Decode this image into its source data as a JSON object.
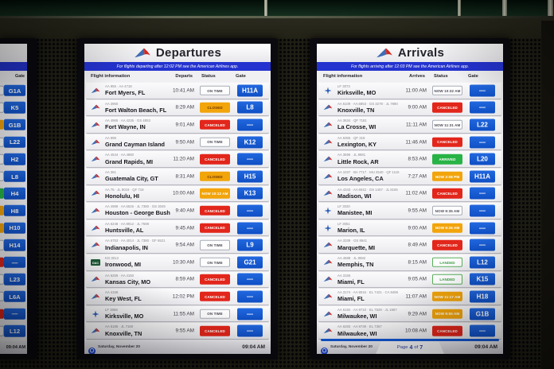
{
  "scene": {
    "time": "09:04 AM",
    "date": "Saturday, November 20"
  },
  "icons": {
    "kg_label": "DAC"
  },
  "colors": {
    "gate_blue": "#1257d2",
    "banner_blue": "#2433cf",
    "canceled_red": "#e2261b",
    "amber": "#f2a40b",
    "arrived_green": "#28b346"
  },
  "left_board": {
    "gate_column_label": "Gate",
    "footer_time": "09:04 AM",
    "rows": [
      {
        "gate": "G1A",
        "status_edge": "outline"
      },
      {
        "gate": "K5",
        "status_edge": "outline"
      },
      {
        "gate": "G1B",
        "status_edge": "amber"
      },
      {
        "gate": "L22",
        "status_edge": "outline"
      },
      {
        "gate": "H2",
        "status_edge": "outline"
      },
      {
        "gate": "L8",
        "status_edge": "outline"
      },
      {
        "gate": "H4",
        "status_edge": "green"
      },
      {
        "gate": "H8",
        "status_edge": "amber"
      },
      {
        "gate": "H10",
        "status_edge": "amber"
      },
      {
        "gate": "H14",
        "status_edge": "outline"
      },
      {
        "gate": "—",
        "status_edge": "red"
      },
      {
        "gate": "L23",
        "status_edge": "outline"
      },
      {
        "gate": "L6A",
        "status_edge": "outline"
      },
      {
        "gate": "—",
        "status_edge": "red"
      },
      {
        "gate": "L12",
        "status_edge": "outline"
      }
    ]
  },
  "departures": {
    "title": "Departures",
    "banner": "For flights departing after 12:02 PM see the American Airlines app.",
    "columns": [
      "Flight information",
      "Departs",
      "Status",
      "Gate"
    ],
    "footer": {
      "date": "Saturday, November 20",
      "time": "09:04 AM"
    },
    "rows": [
      {
        "airline": "aa",
        "codes": "AA 955 · AA 4718",
        "city": "Fort Myers, FL",
        "time": "10:41 AM",
        "status": "ON TIME",
        "status_style": "ontime",
        "gate": "H11A"
      },
      {
        "airline": "aa",
        "codes": "AA 3960",
        "city": "Fort Walton Beach, FL",
        "time": "8:29 AM",
        "status": "CLOSED",
        "status_style": "closed",
        "gate": "L8"
      },
      {
        "airline": "aa",
        "codes": "AA 4965 · AA 4235 · GS 4853",
        "city": "Fort Wayne, IN",
        "time": "9:01 AM",
        "status": "CANCELED",
        "status_style": "canceled",
        "gate": "—"
      },
      {
        "airline": "aa",
        "codes": "AA 998",
        "city": "Grand Cayman Island",
        "time": "9:50 AM",
        "status": "ON TIME",
        "status_style": "ontime",
        "gate": "K12"
      },
      {
        "airline": "aa",
        "codes": "AA 4544 · AA 4880",
        "city": "Grand Rapids, MI",
        "time": "11:20 AM",
        "status": "CANCELED",
        "status_style": "canceled",
        "gate": "—"
      },
      {
        "airline": "aa",
        "codes": "AA 361",
        "city": "Guatemala City, GT",
        "time": "8:31 AM",
        "status": "CLOSED",
        "status_style": "closed",
        "gate": "H15"
      },
      {
        "airline": "aa",
        "codes": "AA 75 · JL 8019 · QF 718",
        "city": "Honolulu, HI",
        "time": "10:00 AM",
        "status": "NOW 10:12 AM",
        "status_style": "now-amber",
        "gate": "K13"
      },
      {
        "airline": "aa",
        "codes": "AA 4989 · AA 6525 · JL 7380 · GS 3049",
        "city": "Houston - George Bush",
        "time": "9:40 AM",
        "status": "CANCELED",
        "status_style": "canceled",
        "gate": "—"
      },
      {
        "airline": "aa",
        "codes": "AA 6248 · AA 9912 · JL 7698",
        "city": "Huntsville, AL",
        "time": "9:45 AM",
        "status": "CANCELED",
        "status_style": "canceled",
        "gate": "—"
      },
      {
        "airline": "aa",
        "codes": "AA 6753 · AA 4014 · JL 7380 · GF 6521",
        "city": "Indianapolis, IN",
        "time": "9:54 AM",
        "status": "ON TIME",
        "status_style": "ontime",
        "gate": "L9"
      },
      {
        "airline": "kg",
        "codes": "KG 3012",
        "city": "Ironwood, MI",
        "time": "10:30 AM",
        "status": "ON TIME",
        "status_style": "ontime",
        "gate": "G21"
      },
      {
        "airline": "aa",
        "codes": "AA 6259 · AA 4150",
        "city": "Kansas City, MO",
        "time": "8:59 AM",
        "status": "CANCELED",
        "status_style": "canceled",
        "gate": "—"
      },
      {
        "airline": "aa",
        "codes": "AA 4168",
        "city": "Key West, FL",
        "time": "12:02 PM",
        "status": "CANCELED",
        "status_style": "canceled",
        "gate": "—"
      },
      {
        "airline": "lf",
        "codes": "LF 3068",
        "city": "Kirksville, MO",
        "time": "11:55 AM",
        "status": "ON TIME",
        "status_style": "ontime",
        "gate": "—"
      },
      {
        "airline": "aa",
        "codes": "AA 5185 · JL 7160",
        "city": "Knoxville, TN",
        "time": "9:55 AM",
        "status": "CANCELED",
        "status_style": "canceled",
        "gate": "—"
      }
    ]
  },
  "arrivals": {
    "title": "Arrivals",
    "banner": "For flights arriving after 12:03 PM see the American Airlines app.",
    "columns": [
      "Flight information",
      "Arrives",
      "Status",
      "Gate"
    ],
    "footer": {
      "date": "Saturday, November 20",
      "time": "09:04 AM",
      "page": {
        "prefix": "Page",
        "current": "4",
        "of": "of",
        "total": "7"
      }
    },
    "rows": [
      {
        "airline": "lf",
        "codes": "LF 3073",
        "city": "Kirksville, MO",
        "time": "11:00 AM",
        "status": "NOW 10:32 AM",
        "status_style": "now-outline",
        "gate": "—"
      },
      {
        "airline": "aa",
        "codes": "AA 5109 · AA 6853 · GS 3278 · JL 7880",
        "city": "Knoxville, TN",
        "time": "9:00 AM",
        "status": "CANCELED",
        "status_style": "canceled",
        "gate": "—"
      },
      {
        "airline": "aa",
        "codes": "AA 3634 · QF 7181",
        "city": "La Crosse, WI",
        "time": "11:11 AM",
        "status": "NOW 11:31 AM",
        "status_style": "now-outline",
        "gate": "L22"
      },
      {
        "airline": "aa",
        "codes": "AA 6365 · QF 318",
        "city": "Lexington, KY",
        "time": "11:46 AM",
        "status": "CANCELED",
        "status_style": "canceled",
        "gate": "—"
      },
      {
        "airline": "aa",
        "codes": "AA 3696 · JL 8881",
        "city": "Little Rock, AR",
        "time": "8:53 AM",
        "status": "ARRIVED",
        "status_style": "arrived",
        "gate": "L20"
      },
      {
        "airline": "aa",
        "codes": "AA 1037 · BA 7717 · MU 2540 · QF 1116",
        "city": "Los Angeles, CA",
        "time": "7:27 AM",
        "status": "NOW 2:08 PM",
        "status_style": "now-amber",
        "gate": "H11A"
      },
      {
        "airline": "aa",
        "codes": "AA 4343 · AA 6042 · GS 1467 · JL 8165",
        "city": "Madison, WI",
        "time": "11:02 AM",
        "status": "CANCELED",
        "status_style": "canceled",
        "gate": "—"
      },
      {
        "airline": "lf",
        "codes": "LF 3020",
        "city": "Manistee, MI",
        "time": "9:55 AM",
        "status": "NOW 9:35 AM",
        "status_style": "now-outline",
        "gate": "—"
      },
      {
        "airline": "lf",
        "codes": "LF 3051",
        "city": "Marion, IL",
        "time": "9:00 AM",
        "status": "NOW 9:26 AM",
        "status_style": "now-amber",
        "gate": "—"
      },
      {
        "airline": "aa",
        "codes": "AA 3339 · GS 8941",
        "city": "Marquette, MI",
        "time": "8:49 AM",
        "status": "CANCELED",
        "status_style": "canceled",
        "gate": "—"
      },
      {
        "airline": "aa",
        "codes": "AA 4688 · JL 8582",
        "city": "Memphis, TN",
        "time": "8:15 AM",
        "status": "LANDED",
        "status_style": "landed",
        "gate": "L12"
      },
      {
        "airline": "aa",
        "codes": "AA 3155",
        "city": "Miami, FL",
        "time": "9:05 AM",
        "status": "LANDED",
        "status_style": "landed",
        "gate": "K15"
      },
      {
        "airline": "aa",
        "codes": "AA 3174 · AA 9016 · EL 7421 · CA 8486",
        "city": "Miami, FL",
        "time": "11:07 AM",
        "status": "NOW 11:17 AM",
        "status_style": "now-amber",
        "gate": "H18"
      },
      {
        "airline": "aa",
        "codes": "AA 6192 · AA 9710 · EL 7529 · JL 1957",
        "city": "Milwaukee, WI",
        "time": "9:29 AM",
        "status": "NOW 9:55 AM",
        "status_style": "now-amber",
        "gate": "G1B"
      },
      {
        "airline": "aa",
        "codes": "AA 6283 · AA 9739 · EL 7367",
        "city": "Milwaukee, WI",
        "time": "10:08 AM",
        "status": "CANCELED",
        "status_style": "canceled",
        "gate": "—"
      }
    ]
  }
}
